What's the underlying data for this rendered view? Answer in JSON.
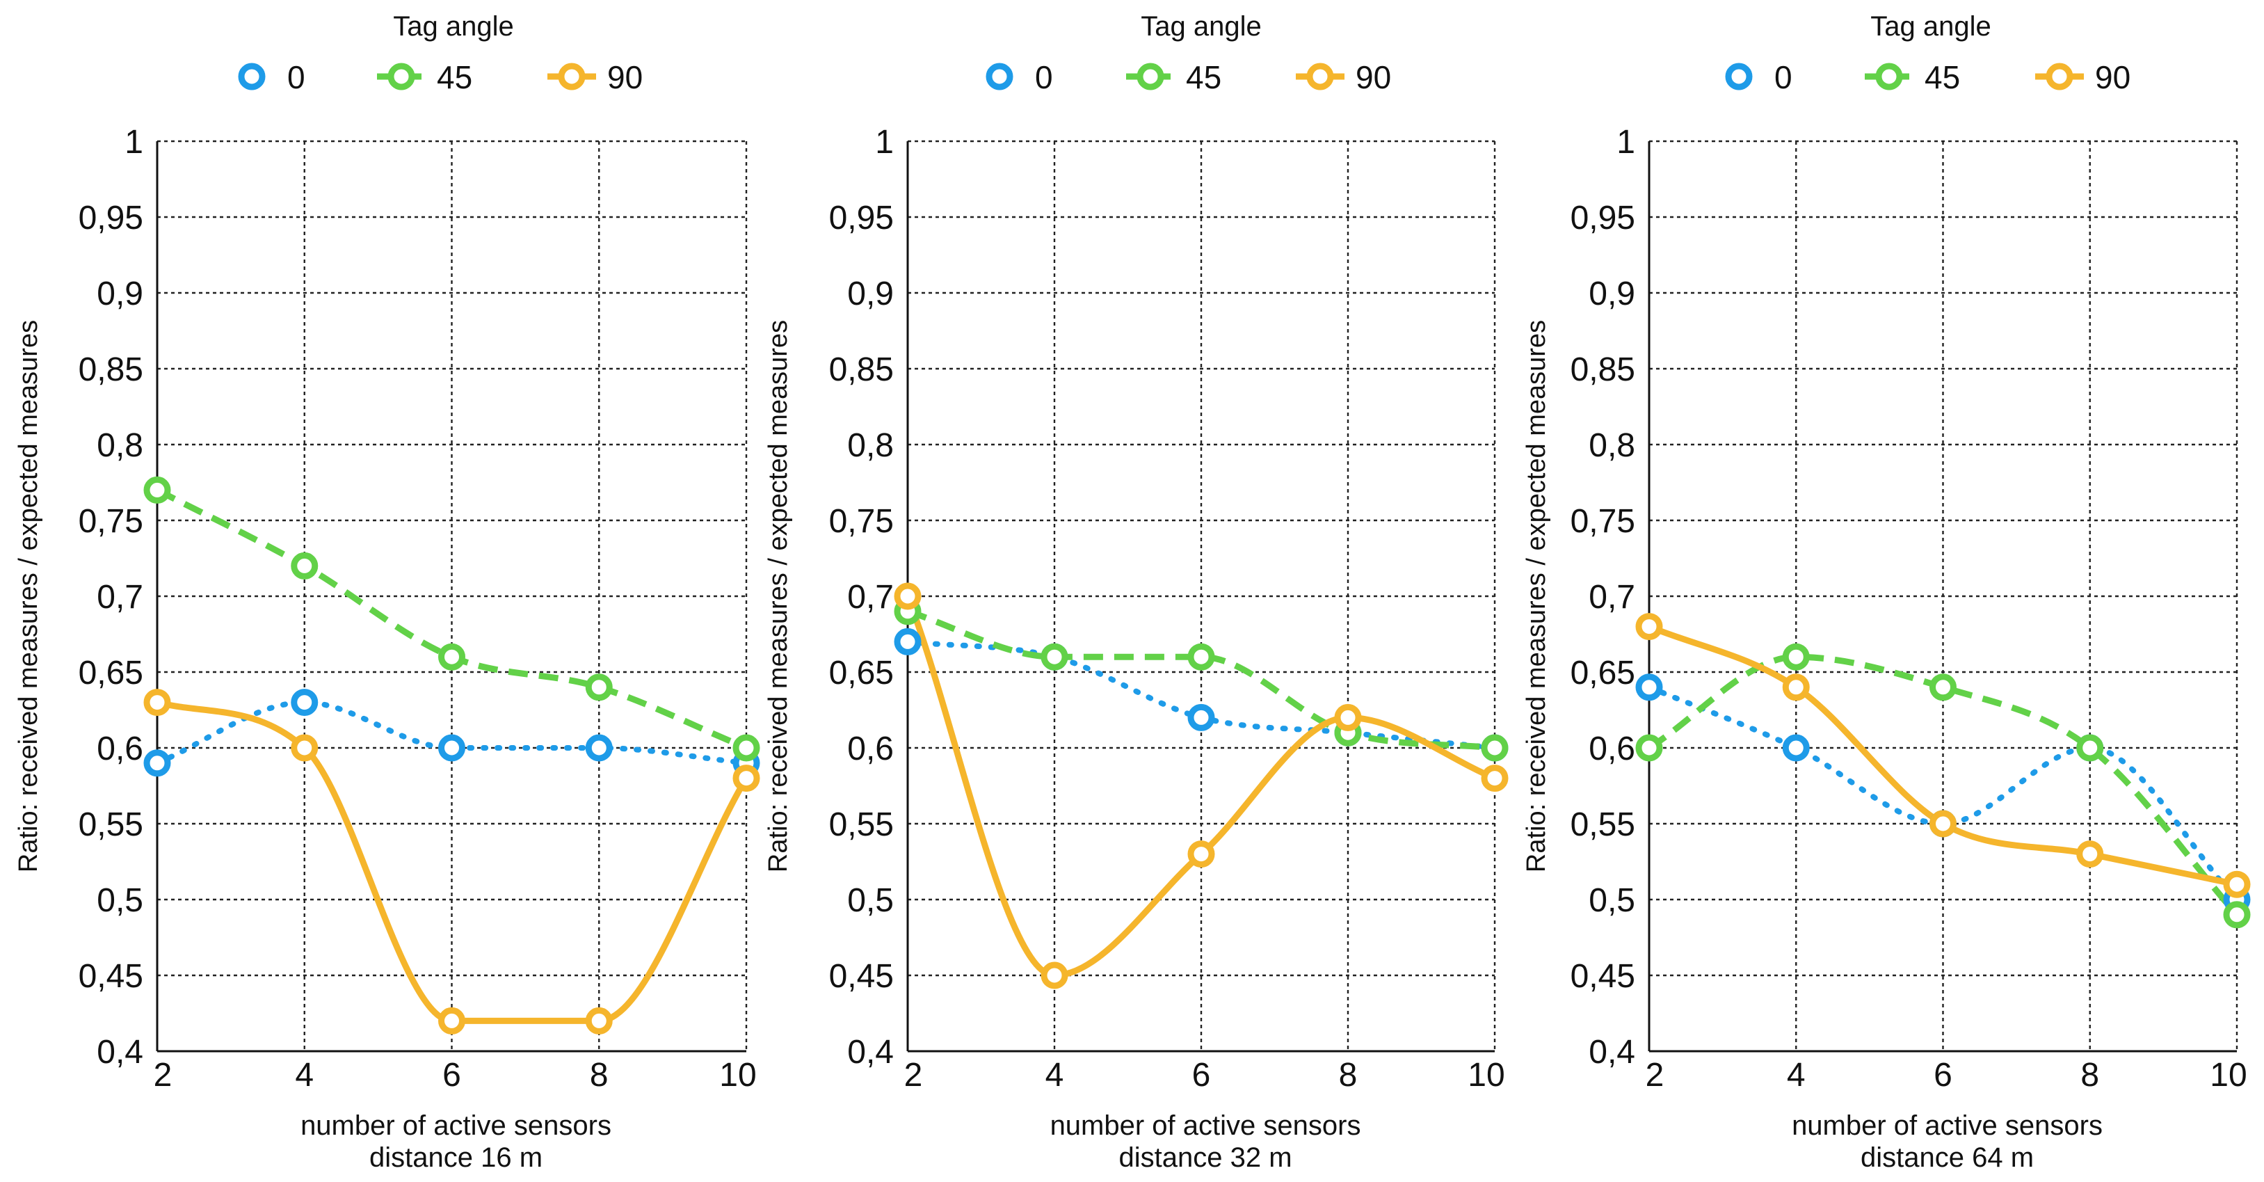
{
  "chart_data": [
    {
      "type": "line",
      "legend_title": "Tag angle",
      "xlabel": "number of active sensors",
      "xlabel2": "distance 16 m",
      "ylabel": "Ratio: received  measures / expected measures",
      "x": [
        2,
        4,
        6,
        8,
        10
      ],
      "xticks": [
        "2",
        "4",
        "6",
        "8",
        "10"
      ],
      "ylim": [
        0.4,
        1.0
      ],
      "yticks": [
        "0,4",
        "0,45",
        "0,5",
        "0,55",
        "0,6",
        "0,65",
        "0,7",
        "0,75",
        "0,8",
        "0,85",
        "0,9",
        "0,95",
        "1"
      ],
      "grid": true,
      "legend_position": "top",
      "series": [
        {
          "name": "0",
          "color": "#1e9be8",
          "style": "dotted",
          "values": [
            0.59,
            0.63,
            0.6,
            0.6,
            0.59
          ]
        },
        {
          "name": "45",
          "color": "#62d148",
          "style": "dashed",
          "values": [
            0.77,
            0.72,
            0.66,
            0.64,
            0.6
          ]
        },
        {
          "name": "90",
          "color": "#f5b52c",
          "style": "solid",
          "values": [
            0.63,
            0.6,
            0.42,
            0.42,
            0.58
          ]
        }
      ]
    },
    {
      "type": "line",
      "legend_title": "Tag angle",
      "xlabel": "number of active sensors",
      "xlabel2": "distance 32 m",
      "ylabel": "Ratio: received  measures / expected measures",
      "x": [
        2,
        4,
        6,
        8,
        10
      ],
      "xticks": [
        "2",
        "4",
        "6",
        "8",
        "10"
      ],
      "ylim": [
        0.4,
        1.0
      ],
      "yticks": [
        "0,4",
        "0,45",
        "0,5",
        "0,55",
        "0,6",
        "0,65",
        "0,7",
        "0,75",
        "0,8",
        "0,85",
        "0,9",
        "0,95",
        "1"
      ],
      "grid": true,
      "legend_position": "top",
      "series": [
        {
          "name": "0",
          "color": "#1e9be8",
          "style": "dotted",
          "values": [
            0.67,
            0.66,
            0.62,
            0.61,
            0.6
          ]
        },
        {
          "name": "45",
          "color": "#62d148",
          "style": "dashed",
          "values": [
            0.69,
            0.66,
            0.66,
            0.61,
            0.6
          ]
        },
        {
          "name": "90",
          "color": "#f5b52c",
          "style": "solid",
          "values": [
            0.7,
            0.45,
            0.53,
            0.62,
            0.58
          ]
        }
      ]
    },
    {
      "type": "line",
      "legend_title": "Tag angle",
      "xlabel": "number of active sensors",
      "xlabel2": "distance 64 m",
      "ylabel": "Ratio: received  measures / expected measures",
      "x": [
        2,
        4,
        6,
        8,
        10
      ],
      "xticks": [
        "2",
        "4",
        "6",
        "8",
        "10"
      ],
      "ylim": [
        0.4,
        1.0
      ],
      "yticks": [
        "0,4",
        "0,45",
        "0,5",
        "0,55",
        "0,6",
        "0,65",
        "0,7",
        "0,75",
        "0,8",
        "0,85",
        "0,9",
        "0,95",
        "1"
      ],
      "grid": true,
      "legend_position": "top",
      "series": [
        {
          "name": "0",
          "color": "#1e9be8",
          "style": "dotted",
          "values": [
            0.64,
            0.6,
            0.55,
            0.6,
            0.5
          ]
        },
        {
          "name": "45",
          "color": "#62d148",
          "style": "dashed",
          "values": [
            0.6,
            0.66,
            0.64,
            0.6,
            0.49
          ]
        },
        {
          "name": "90",
          "color": "#f5b52c",
          "style": "solid",
          "values": [
            0.68,
            0.64,
            0.55,
            0.53,
            0.51
          ]
        }
      ]
    }
  ]
}
